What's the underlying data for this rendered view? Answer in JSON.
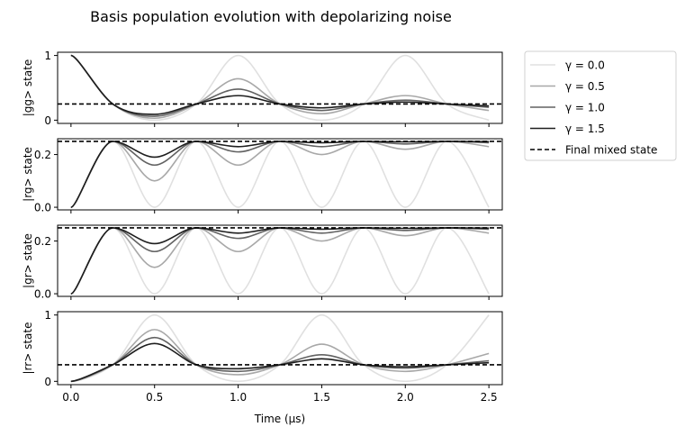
{
  "figure": {
    "title": "Basis population evolution with depolarizing noise"
  },
  "chart_data": {
    "type": "line",
    "title": "Basis population evolution with depolarizing noise",
    "xlabel": "Time (μs)",
    "xlim": [
      -0.08,
      2.58
    ],
    "xticks": [
      0.0,
      0.5,
      1.0,
      1.5,
      2.0,
      2.5
    ],
    "xtick_labels": [
      "0.0",
      "0.5",
      "1.0",
      "1.5",
      "2.0",
      "2.5"
    ],
    "grid": false,
    "legend_position": "outside-top-right",
    "legend": [
      {
        "label": "γ = 0.0",
        "color": "#e0e0e0",
        "style": "solid"
      },
      {
        "label": "γ = 0.5",
        "color": "#a8a8a8",
        "style": "solid"
      },
      {
        "label": "γ = 1.0",
        "color": "#626262",
        "style": "solid"
      },
      {
        "label": "γ = 1.5",
        "color": "#1e1e1e",
        "style": "solid"
      },
      {
        "label": "Final mixed state",
        "color": "#000000",
        "style": "dashed"
      }
    ],
    "panels": [
      {
        "ylabel": "|gg> state",
        "ylim": [
          -0.05,
          1.05
        ],
        "yticks": [
          0,
          1
        ],
        "ytick_labels": [
          "0",
          "1"
        ],
        "final_mixed_value": 0.25,
        "x": [
          0.0,
          0.25,
          0.5,
          0.75,
          1.0,
          1.25,
          1.5,
          1.75,
          2.0,
          2.25,
          2.5
        ],
        "series": [
          {
            "name": "γ = 0.0",
            "values": [
              1.0,
              0.25,
              0.0,
              0.25,
              1.0,
              0.25,
              0.0,
              0.25,
              1.0,
              0.25,
              0.0
            ]
          },
          {
            "name": "γ = 0.5",
            "values": [
              1.0,
              0.25,
              0.03,
              0.25,
              0.64,
              0.25,
              0.1,
              0.25,
              0.38,
              0.25,
              0.15
            ]
          },
          {
            "name": "γ = 1.0",
            "values": [
              1.0,
              0.25,
              0.06,
              0.25,
              0.48,
              0.25,
              0.15,
              0.25,
              0.31,
              0.25,
              0.2
            ]
          },
          {
            "name": "γ = 1.5",
            "values": [
              1.0,
              0.25,
              0.09,
              0.25,
              0.38,
              0.25,
              0.19,
              0.25,
              0.28,
              0.25,
              0.22
            ]
          }
        ]
      },
      {
        "ylabel": "|rg> state",
        "ylim": [
          -0.01,
          0.26
        ],
        "yticks": [
          0.0,
          0.2
        ],
        "ytick_labels": [
          "0.0",
          "0.2"
        ],
        "final_mixed_value": 0.25,
        "x": [
          0.0,
          0.25,
          0.5,
          0.75,
          1.0,
          1.25,
          1.5,
          1.75,
          2.0,
          2.25,
          2.5
        ],
        "series": [
          {
            "name": "γ = 0.0",
            "values": [
              0.0,
              0.25,
              0.0,
              0.25,
              0.0,
              0.25,
              0.0,
              0.25,
              0.0,
              0.25,
              0.0
            ]
          },
          {
            "name": "γ = 0.5",
            "values": [
              0.0,
              0.25,
              0.1,
              0.25,
              0.16,
              0.25,
              0.2,
              0.25,
              0.22,
              0.25,
              0.23
            ]
          },
          {
            "name": "γ = 1.0",
            "values": [
              0.0,
              0.25,
              0.16,
              0.25,
              0.21,
              0.25,
              0.23,
              0.25,
              0.24,
              0.25,
              0.245
            ]
          },
          {
            "name": "γ = 1.5",
            "values": [
              0.0,
              0.25,
              0.19,
              0.25,
              0.23,
              0.25,
              0.245,
              0.25,
              0.248,
              0.25,
              0.249
            ]
          }
        ]
      },
      {
        "ylabel": "|gr> state",
        "ylim": [
          -0.01,
          0.26
        ],
        "yticks": [
          0.0,
          0.2
        ],
        "ytick_labels": [
          "0.0",
          "0.2"
        ],
        "final_mixed_value": 0.25,
        "x": [
          0.0,
          0.25,
          0.5,
          0.75,
          1.0,
          1.25,
          1.5,
          1.75,
          2.0,
          2.25,
          2.5
        ],
        "series": [
          {
            "name": "γ = 0.0",
            "values": [
              0.0,
              0.25,
              0.0,
              0.25,
              0.0,
              0.25,
              0.0,
              0.25,
              0.0,
              0.25,
              0.0
            ]
          },
          {
            "name": "γ = 0.5",
            "values": [
              0.0,
              0.25,
              0.1,
              0.25,
              0.16,
              0.25,
              0.2,
              0.25,
              0.22,
              0.25,
              0.23
            ]
          },
          {
            "name": "γ = 1.0",
            "values": [
              0.0,
              0.25,
              0.16,
              0.25,
              0.21,
              0.25,
              0.23,
              0.25,
              0.24,
              0.25,
              0.245
            ]
          },
          {
            "name": "γ = 1.5",
            "values": [
              0.0,
              0.25,
              0.19,
              0.25,
              0.23,
              0.25,
              0.245,
              0.25,
              0.248,
              0.25,
              0.249
            ]
          }
        ]
      },
      {
        "ylabel": "|rr> state",
        "ylim": [
          -0.05,
          1.05
        ],
        "yticks": [
          0,
          1
        ],
        "ytick_labels": [
          "0",
          "1"
        ],
        "final_mixed_value": 0.25,
        "x": [
          0.0,
          0.25,
          0.5,
          0.75,
          1.0,
          1.25,
          1.5,
          1.75,
          2.0,
          2.25,
          2.5
        ],
        "series": [
          {
            "name": "γ = 0.0",
            "values": [
              0.0,
              0.25,
              1.0,
              0.25,
              0.0,
              0.25,
              1.0,
              0.25,
              0.0,
              0.25,
              1.0
            ]
          },
          {
            "name": "γ = 0.5",
            "values": [
              0.0,
              0.25,
              0.78,
              0.25,
              0.1,
              0.25,
              0.56,
              0.25,
              0.15,
              0.25,
              0.42
            ]
          },
          {
            "name": "γ = 1.0",
            "values": [
              0.0,
              0.25,
              0.66,
              0.25,
              0.15,
              0.25,
              0.4,
              0.25,
              0.2,
              0.25,
              0.31
            ]
          },
          {
            "name": "γ = 1.5",
            "values": [
              0.0,
              0.25,
              0.57,
              0.25,
              0.19,
              0.25,
              0.34,
              0.25,
              0.22,
              0.25,
              0.28
            ]
          }
        ]
      }
    ]
  }
}
